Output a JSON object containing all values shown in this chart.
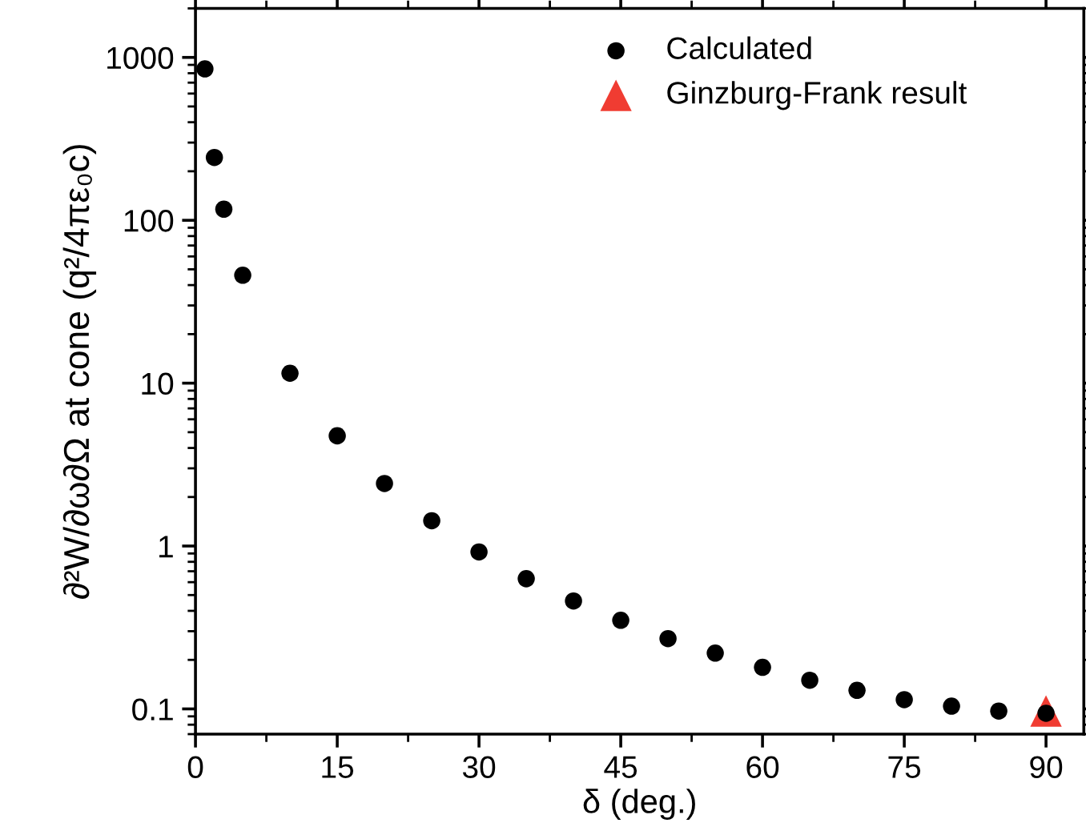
{
  "chart_data": {
    "type": "scatter",
    "xlabel": "δ (deg.)",
    "ylabel": "∂²W/∂ω∂Ω at cone (q²/4πε₀c)",
    "log": "y",
    "xlim": [
      0,
      94
    ],
    "xticks": [
      0,
      15,
      30,
      45,
      60,
      75,
      90
    ],
    "ylim": [
      0.07,
      2000
    ],
    "yticks": [
      0.1,
      1,
      10,
      100,
      1000
    ],
    "grid": false,
    "legend": "top right",
    "series": [
      {
        "name": "Calculated",
        "color": "#000000",
        "marker": "circle",
        "x": [
          1,
          2,
          3,
          5,
          10,
          15,
          20,
          25,
          30,
          35,
          40,
          45,
          50,
          55,
          60,
          65,
          70,
          75,
          80,
          85,
          90
        ],
        "values": [
          850,
          243,
          117,
          46,
          11.5,
          4.75,
          2.42,
          1.43,
          0.92,
          0.63,
          0.46,
          0.35,
          0.27,
          0.22,
          0.18,
          0.15,
          0.13,
          0.114,
          0.104,
          0.097,
          0.094
        ]
      },
      {
        "name": "Ginzburg-Frank result",
        "color": "#f03c32",
        "marker": "triangle",
        "x": [
          90
        ],
        "values": [
          0.097
        ]
      }
    ]
  }
}
